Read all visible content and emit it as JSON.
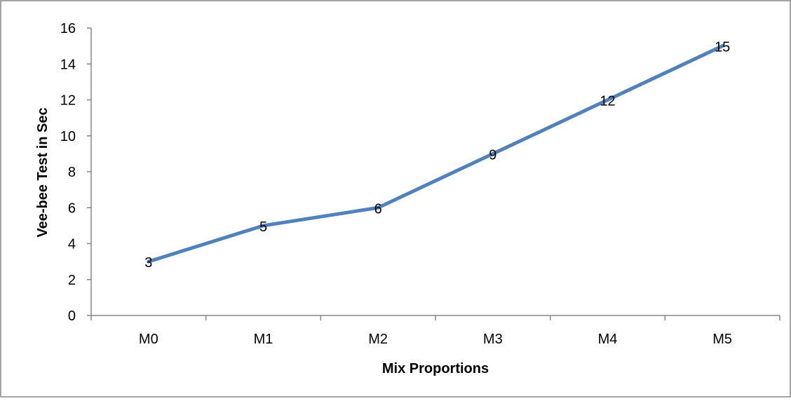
{
  "chart_data": {
    "type": "line",
    "categories": [
      "M0",
      "M1",
      "M2",
      "M3",
      "M4",
      "M5"
    ],
    "series": [
      {
        "values": [
          3,
          5,
          6,
          9,
          12,
          15
        ],
        "color": "#4f81bd"
      }
    ],
    "data_labels": [
      "3",
      "5",
      "6",
      "9",
      "12",
      "15"
    ],
    "xlabel": "Mix Proportions",
    "ylabel": "Vee-bee Test in Sec",
    "ylim": [
      0,
      16
    ],
    "yticks": [
      0,
      2,
      4,
      6,
      8,
      10,
      12,
      14,
      16
    ],
    "ytick_labels": [
      "0",
      "2",
      "4",
      "6",
      "8",
      "10",
      "12",
      "14",
      "16"
    ],
    "grid": false,
    "legend": "none"
  }
}
